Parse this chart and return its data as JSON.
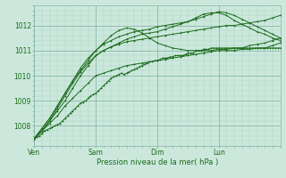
{
  "title": "",
  "xlabel": "Pression niveau de la mer( hPa )",
  "bg_color": "#cce8dc",
  "plot_bg_color": "#cce8dc",
  "grid_major_color": "#88b8a8",
  "grid_minor_color": "#aad4c4",
  "line_color": "#1a6b1a",
  "ylim": [
    1007.3,
    1012.8
  ],
  "xlim": [
    0,
    96
  ],
  "yticks": [
    1008,
    1009,
    1010,
    1011,
    1012
  ],
  "xtick_positions": [
    0,
    24,
    48,
    72,
    96
  ],
  "xtick_labels": [
    "Ven",
    "Sam",
    "Dim",
    "Lun",
    ""
  ],
  "lines": [
    {
      "x": [
        0,
        1,
        2,
        3,
        4,
        5,
        6,
        7,
        8,
        9,
        10,
        11,
        12,
        13,
        14,
        15,
        16,
        17,
        18,
        19,
        20,
        21,
        22,
        23,
        24,
        25,
        26,
        27,
        28,
        29,
        30,
        31,
        32,
        33,
        34,
        35,
        36,
        37,
        38,
        39,
        40,
        41,
        42,
        43,
        44,
        45,
        46,
        47,
        48,
        49,
        50,
        51,
        52,
        53,
        54,
        55,
        56,
        57,
        58,
        59,
        60,
        61,
        62,
        63,
        64,
        65,
        66,
        67,
        68,
        69,
        70,
        71,
        72,
        73,
        74,
        75,
        76,
        77,
        78,
        79,
        80,
        81,
        82,
        83,
        84,
        85,
        86,
        87,
        88,
        89,
        90,
        91,
        92,
        93,
        94,
        95,
        96
      ],
      "y": [
        1007.5,
        1007.55,
        1007.6,
        1007.7,
        1007.8,
        1007.85,
        1007.9,
        1007.95,
        1008.0,
        1008.05,
        1008.1,
        1008.2,
        1008.3,
        1008.4,
        1008.5,
        1008.6,
        1008.7,
        1008.8,
        1008.9,
        1008.95,
        1009.0,
        1009.1,
        1009.2,
        1009.25,
        1009.3,
        1009.4,
        1009.5,
        1009.6,
        1009.7,
        1009.8,
        1009.9,
        1009.95,
        1010.0,
        1010.05,
        1010.1,
        1010.05,
        1010.1,
        1010.15,
        1010.2,
        1010.25,
        1010.3,
        1010.35,
        1010.4,
        1010.45,
        1010.5,
        1010.55,
        1010.55,
        1010.6,
        1010.6,
        1010.65,
        1010.7,
        1010.7,
        1010.7,
        1010.75,
        1010.75,
        1010.8,
        1010.8,
        1010.8,
        1010.8,
        1010.85,
        1010.9,
        1010.9,
        1010.9,
        1011.0,
        1011.0,
        1011.0,
        1011.05,
        1011.05,
        1011.05,
        1011.1,
        1011.1,
        1011.1,
        1011.1,
        1011.1,
        1011.1,
        1011.1,
        1011.1,
        1011.1,
        1011.1,
        1011.1,
        1011.1,
        1011.1,
        1011.1,
        1011.1,
        1011.1,
        1011.1,
        1011.1,
        1011.1,
        1011.1,
        1011.1,
        1011.1,
        1011.1,
        1011.1,
        1011.1,
        1011.1,
        1011.1,
        1011.1
      ]
    },
    {
      "x": [
        0,
        3,
        6,
        9,
        12,
        15,
        18,
        21,
        24,
        27,
        30,
        33,
        36,
        39,
        42,
        45,
        48,
        51,
        54,
        57,
        60,
        63,
        66,
        69,
        72,
        75,
        78,
        81,
        84,
        87,
        90,
        93,
        96
      ],
      "y": [
        1007.5,
        1007.8,
        1008.1,
        1008.4,
        1008.8,
        1009.1,
        1009.4,
        1009.7,
        1010.0,
        1010.1,
        1010.2,
        1010.3,
        1010.4,
        1010.45,
        1010.5,
        1010.55,
        1010.6,
        1010.65,
        1010.7,
        1010.75,
        1010.8,
        1010.85,
        1010.9,
        1010.95,
        1011.0,
        1011.0,
        1011.0,
        1011.05,
        1011.05,
        1011.1,
        1011.1,
        1011.2,
        1011.3
      ]
    },
    {
      "x": [
        0,
        3,
        6,
        9,
        12,
        15,
        18,
        21,
        24,
        27,
        30,
        33,
        36,
        39,
        42,
        45,
        48,
        51,
        54,
        57,
        60,
        63,
        66,
        69,
        72,
        75,
        78,
        81,
        84,
        87,
        90,
        93,
        96
      ],
      "y": [
        1007.5,
        1007.9,
        1008.3,
        1008.8,
        1009.3,
        1009.8,
        1010.3,
        1010.7,
        1011.0,
        1011.3,
        1011.6,
        1011.8,
        1011.9,
        1011.85,
        1011.7,
        1011.5,
        1011.3,
        1011.2,
        1011.1,
        1011.05,
        1011.0,
        1011.0,
        1011.0,
        1011.0,
        1011.05,
        1011.05,
        1011.1,
        1011.1,
        1011.2,
        1011.25,
        1011.3,
        1011.4,
        1011.5
      ]
    },
    {
      "x": [
        0,
        3,
        6,
        9,
        12,
        15,
        18,
        21,
        24,
        27,
        30,
        33,
        36,
        39,
        42,
        45,
        48,
        51,
        54,
        57,
        60,
        63,
        66,
        69,
        72,
        75,
        78,
        81,
        84,
        87,
        90,
        93,
        96
      ],
      "y": [
        1007.5,
        1007.8,
        1008.2,
        1008.7,
        1009.2,
        1009.7,
        1010.15,
        1010.5,
        1010.8,
        1011.0,
        1011.15,
        1011.25,
        1011.35,
        1011.4,
        1011.45,
        1011.5,
        1011.55,
        1011.6,
        1011.65,
        1011.7,
        1011.75,
        1011.8,
        1011.85,
        1011.9,
        1011.95,
        1012.0,
        1012.0,
        1012.05,
        1012.1,
        1012.15,
        1012.2,
        1012.3,
        1012.4
      ]
    },
    {
      "x": [
        0,
        3,
        6,
        9,
        12,
        15,
        18,
        21,
        24,
        27,
        30,
        33,
        36,
        39,
        42,
        45,
        48,
        51,
        54,
        57,
        60,
        63,
        66,
        69,
        72,
        75,
        78,
        81,
        84,
        87,
        90,
        93,
        96
      ],
      "y": [
        1007.5,
        1007.8,
        1008.2,
        1008.6,
        1009.0,
        1009.5,
        1010.0,
        1010.4,
        1010.8,
        1011.0,
        1011.15,
        1011.3,
        1011.45,
        1011.55,
        1011.65,
        1011.7,
        1011.75,
        1011.85,
        1011.95,
        1012.05,
        1012.15,
        1012.3,
        1012.45,
        1012.5,
        1012.5,
        1012.4,
        1012.2,
        1012.05,
        1011.9,
        1011.75,
        1011.65,
        1011.5,
        1011.4
      ]
    },
    {
      "x": [
        0,
        3,
        6,
        9,
        12,
        15,
        18,
        21,
        24,
        27,
        30,
        33,
        36,
        39,
        42,
        45,
        48,
        51,
        54,
        57,
        60,
        63,
        66,
        69,
        72,
        75,
        78,
        81,
        84,
        87,
        90,
        93,
        96
      ],
      "y": [
        1007.5,
        1007.9,
        1008.3,
        1008.8,
        1009.3,
        1009.8,
        1010.2,
        1010.6,
        1011.0,
        1011.25,
        1011.4,
        1011.55,
        1011.65,
        1011.75,
        1011.8,
        1011.85,
        1011.95,
        1012.0,
        1012.05,
        1012.1,
        1012.15,
        1012.25,
        1012.35,
        1012.45,
        1012.55,
        1012.5,
        1012.4,
        1012.25,
        1012.1,
        1011.95,
        1011.8,
        1011.65,
        1011.5
      ]
    }
  ]
}
